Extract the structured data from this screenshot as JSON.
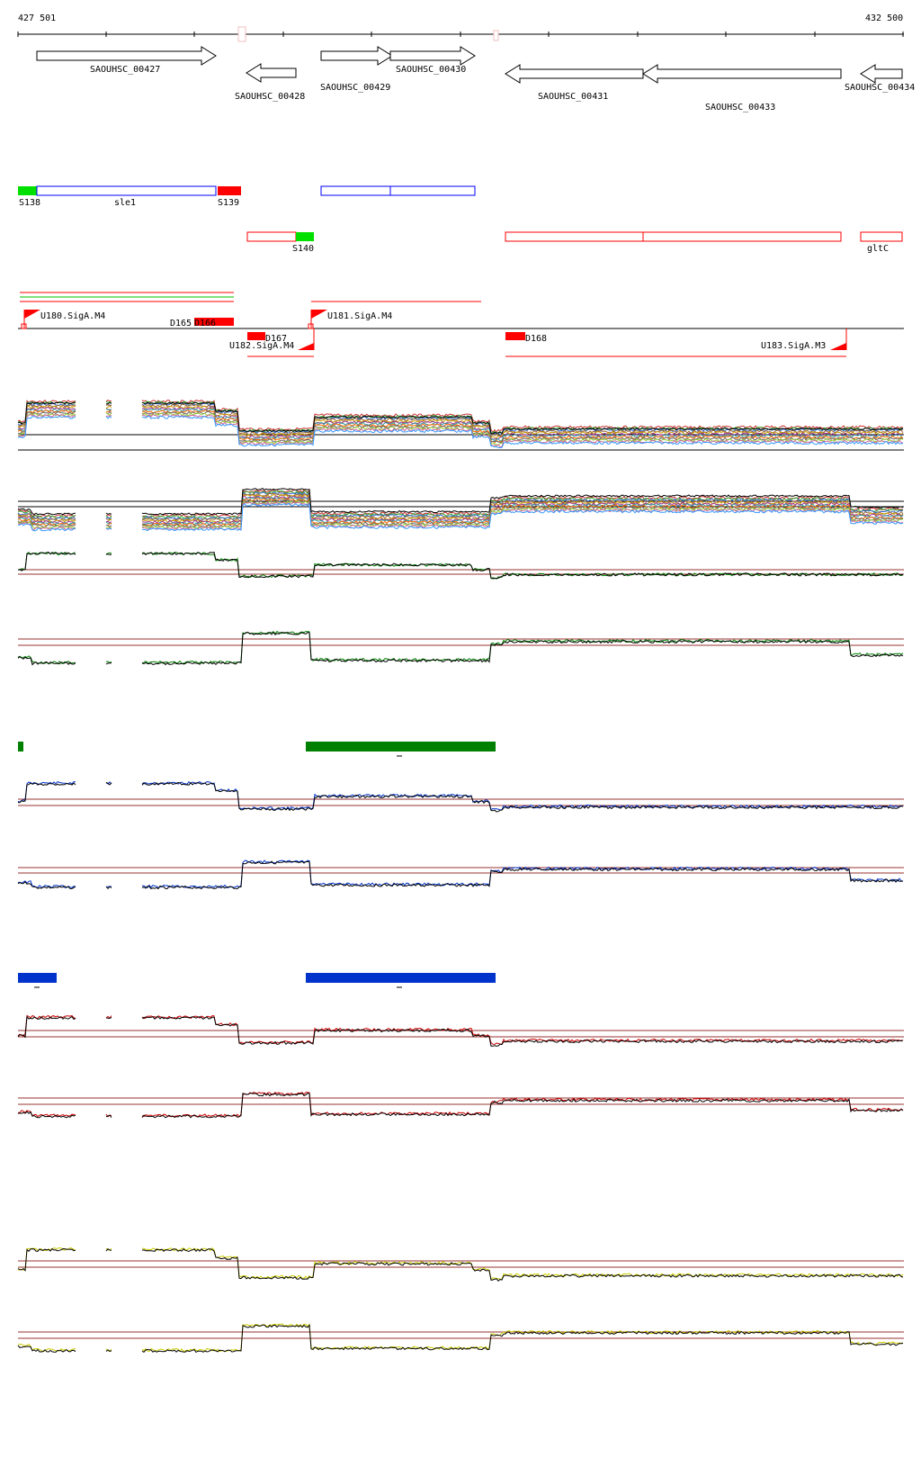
{
  "ruler": {
    "start_label": "427 501",
    "end_label": "432 500"
  },
  "genes": [
    {
      "label": "SAOUHSC_00427",
      "strand": "+"
    },
    {
      "label": "SAOUHSC_00428",
      "strand": "-"
    },
    {
      "label": "SAOUHSC_00429",
      "strand": "+"
    },
    {
      "label": "SAOUHSC_00430",
      "strand": "+"
    },
    {
      "label": "SAOUHSC_00431",
      "strand": "-"
    },
    {
      "label": "SAOUHSC_00433",
      "strand": "-"
    },
    {
      "label": "SAOUHSC_00434",
      "strand": "-"
    }
  ],
  "annotations_plus": [
    {
      "label": "S138",
      "color": "#00e000"
    },
    {
      "label": "sle1",
      "color": "#0000ff"
    },
    {
      "label": "S139",
      "color": "#ff0000"
    }
  ],
  "annotations_minus": [
    {
      "label": "S140",
      "color": "#00e000"
    },
    {
      "label": "gltC",
      "color": "#ff0000"
    }
  ],
  "transcription_units": [
    {
      "label": "U180.SigA.M4"
    },
    {
      "label": "U181.SigA.M4"
    },
    {
      "label": "U182.SigA.M4"
    },
    {
      "label": "U183.SigA.M3"
    }
  ],
  "down_regions": [
    {
      "label": "D165"
    },
    {
      "label": "D166"
    },
    {
      "label": "D167"
    },
    {
      "label": "D168"
    }
  ],
  "colors": {
    "accent_red": "#ff0000",
    "accent_green": "#008000",
    "accent_blue": "#0033cc",
    "threshold": "#993333",
    "yellow_track": "#cccc00"
  }
}
